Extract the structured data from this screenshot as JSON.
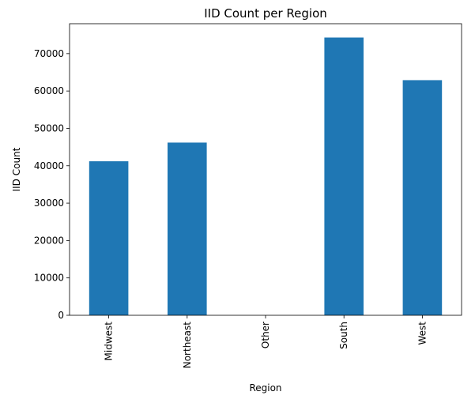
{
  "chart_data": {
    "type": "bar",
    "title": "IID Count per Region",
    "xlabel": "Region",
    "ylabel": "IID Count",
    "categories": [
      "Midwest",
      "Northeast",
      "Other",
      "South",
      "West"
    ],
    "values": [
      41200,
      46200,
      0,
      74300,
      62900
    ],
    "ylim": [
      0,
      78000
    ],
    "yticks": [
      0,
      10000,
      20000,
      30000,
      40000,
      50000,
      60000,
      70000
    ],
    "ytick_labels": [
      "0",
      "10000",
      "20000",
      "30000",
      "40000",
      "50000",
      "60000",
      "70000"
    ],
    "bar_color": "#1f77b4",
    "grid": false,
    "legend": "none"
  }
}
